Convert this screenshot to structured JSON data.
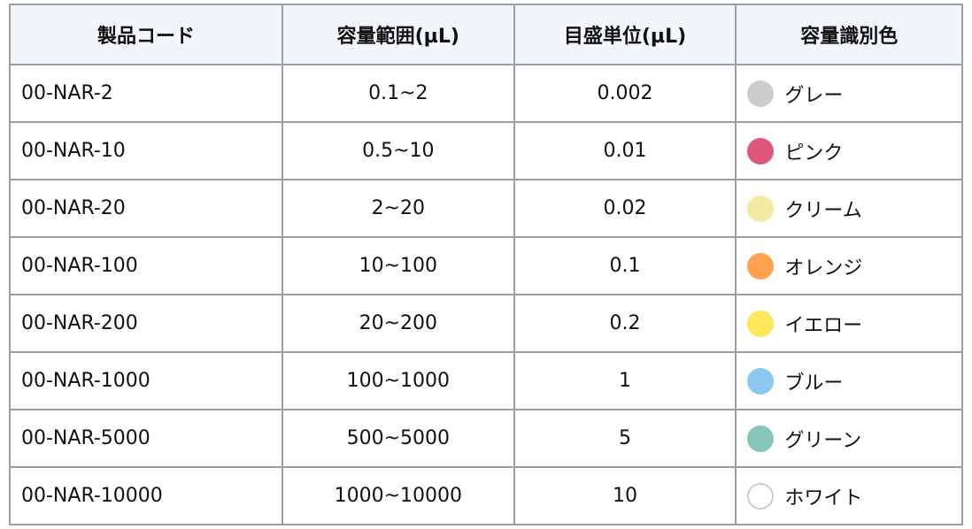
{
  "headers": [
    "製品コード",
    "容量範囲(µL)",
    "目盛単位(µL)",
    "容量識別色"
  ],
  "rows": [
    {
      "code": "00-NAR-2",
      "range": "0.1~2",
      "unit": "0.002",
      "color_name": "グレー",
      "color": "#cccccc"
    },
    {
      "code": "00-NAR-10",
      "range": "0.5~10",
      "unit": "0.01",
      "color_name": "ピンク",
      "color": "#de577a"
    },
    {
      "code": "00-NAR-20",
      "range": "2~20",
      "unit": "0.02",
      "color_name": "クリーム",
      "color": "#f3eaa2"
    },
    {
      "code": "00-NAR-100",
      "range": "10~100",
      "unit": "0.1",
      "color_name": "オレンジ",
      "color": "#ffa04f"
    },
    {
      "code": "00-NAR-200",
      "range": "20~200",
      "unit": "0.2",
      "color_name": "イエロー",
      "color": "#ffe75c"
    },
    {
      "code": "00-NAR-1000",
      "range": "100~1000",
      "unit": "1",
      "color_name": "ブルー",
      "color": "#8cc8f0"
    },
    {
      "code": "00-NAR-5000",
      "range": "500~5000",
      "unit": "5",
      "color_name": "グリーン",
      "color": "#84c6bc"
    },
    {
      "code": "00-NAR-10000",
      "range": "1000~10000",
      "unit": "10",
      "color_name": "ホワイト",
      "color": "#ffffff"
    }
  ]
}
